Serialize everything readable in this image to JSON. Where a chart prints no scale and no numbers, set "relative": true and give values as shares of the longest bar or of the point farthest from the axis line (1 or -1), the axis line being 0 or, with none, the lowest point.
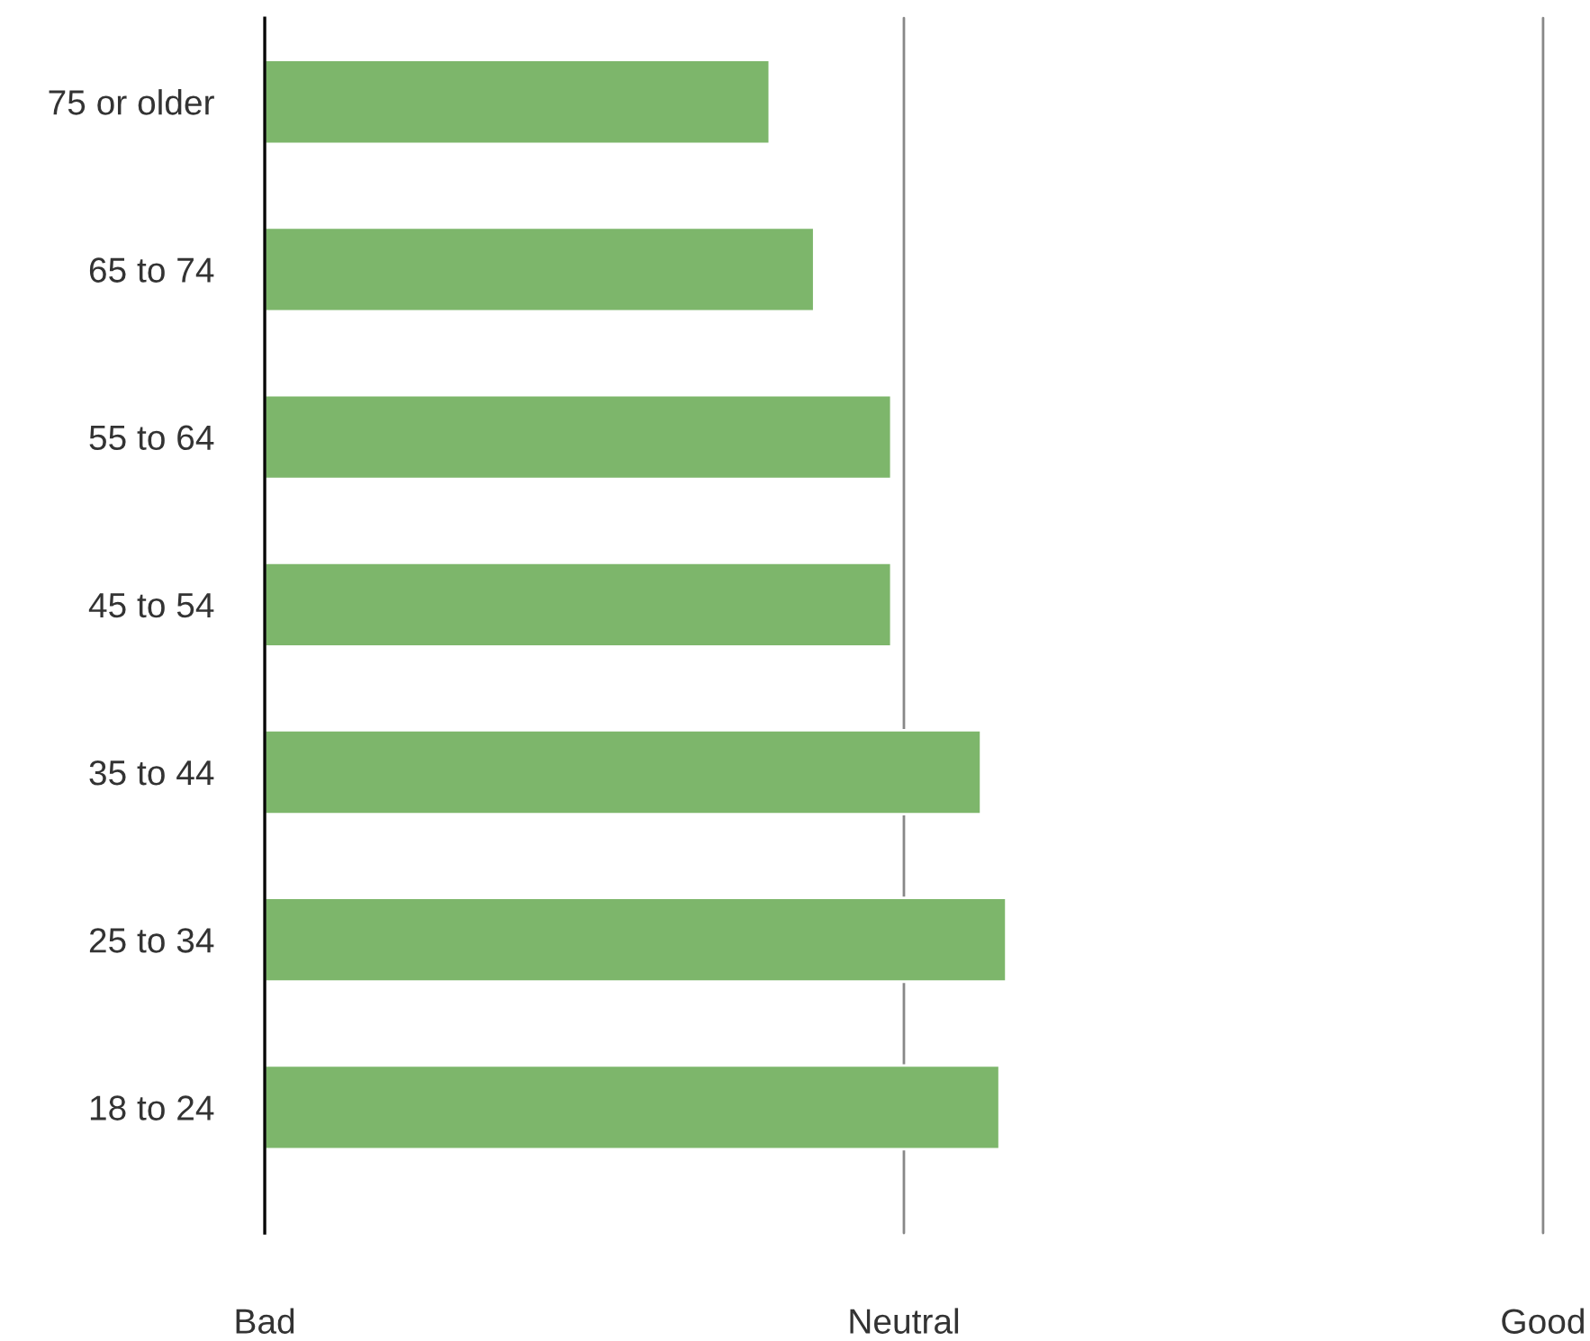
{
  "chart_data": {
    "type": "bar",
    "orientation": "horizontal",
    "relative": true,
    "categories": [
      "75 or older",
      "65 to 74",
      "55 to 64",
      "45 to 54",
      "35 to 44",
      "25 to 34",
      "18 to 24"
    ],
    "values": [
      0.681,
      0.741,
      0.845,
      0.845,
      0.966,
      1.0,
      0.991
    ],
    "color": "#7db66b",
    "annotations": [
      "Bad"
    ],
    "ref_lines": [
      {
        "axis": "x",
        "value": 0.862,
        "label": "Neutral",
        "color": "#888888"
      },
      {
        "axis": "x",
        "value": 1.724,
        "label": "Good",
        "color": "#888888"
      }
    ]
  }
}
